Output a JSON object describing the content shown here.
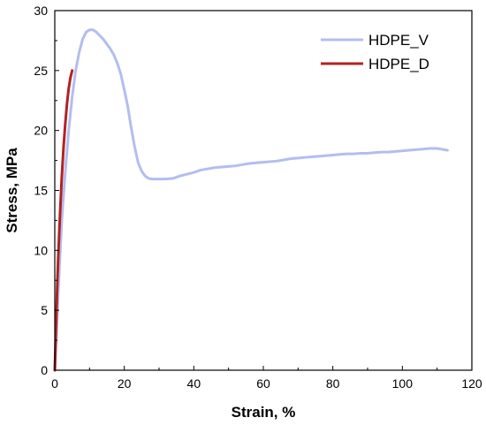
{
  "chart_data": {
    "type": "line",
    "title": "",
    "xlabel": "Strain, %",
    "ylabel": "Stress, MPa",
    "xlim": [
      0,
      120
    ],
    "ylim": [
      0,
      30
    ],
    "xticks": [
      0,
      20,
      40,
      60,
      80,
      100,
      120
    ],
    "yticks": [
      0,
      5,
      10,
      15,
      20,
      25,
      30
    ],
    "grid": false,
    "legend_position": "top-right",
    "series": [
      {
        "name": "HDPE_V",
        "color": "#b4bdf0",
        "x": [
          0,
          0.5,
          1,
          1.5,
          2,
          3,
          4,
          5,
          6,
          7,
          8,
          9,
          10,
          11,
          12,
          13,
          14,
          15,
          16,
          17,
          18,
          19,
          20,
          21,
          22,
          23,
          24,
          25,
          26,
          27,
          28,
          29,
          30,
          32,
          34,
          36,
          38,
          40,
          42,
          44,
          46,
          48,
          50,
          52,
          54,
          56,
          58,
          60,
          62,
          64,
          66,
          68,
          70,
          72,
          74,
          76,
          78,
          80,
          82,
          84,
          86,
          88,
          90,
          92,
          94,
          96,
          98,
          100,
          102,
          104,
          106,
          108,
          110,
          111,
          112,
          113
        ],
        "y": [
          0,
          3,
          6.5,
          9.5,
          12.5,
          16.5,
          20,
          22.8,
          25,
          26.5,
          27.6,
          28.2,
          28.4,
          28.4,
          28.2,
          27.9,
          27.6,
          27.2,
          26.8,
          26.3,
          25.6,
          24.7,
          23.4,
          22,
          20.2,
          18.6,
          17.3,
          16.6,
          16.2,
          16,
          15.95,
          15.95,
          15.95,
          15.95,
          16,
          16.2,
          16.35,
          16.5,
          16.7,
          16.8,
          16.9,
          16.95,
          17,
          17.05,
          17.15,
          17.25,
          17.3,
          17.35,
          17.4,
          17.45,
          17.55,
          17.65,
          17.7,
          17.75,
          17.8,
          17.85,
          17.9,
          17.95,
          18,
          18.05,
          18.05,
          18.1,
          18.1,
          18.15,
          18.2,
          18.2,
          18.25,
          18.3,
          18.35,
          18.4,
          18.45,
          18.5,
          18.5,
          18.45,
          18.4,
          18.35
        ]
      },
      {
        "name": "HDPE_D",
        "color": "#b22222",
        "x": [
          0,
          0.25,
          0.5,
          0.75,
          1,
          1.5,
          2,
          2.5,
          3,
          3.5,
          4,
          4.5,
          5
        ],
        "y": [
          0,
          2.5,
          5,
          7.5,
          9.5,
          13,
          16,
          18.5,
          20.5,
          22.2,
          23.5,
          24.4,
          25
        ]
      }
    ]
  }
}
